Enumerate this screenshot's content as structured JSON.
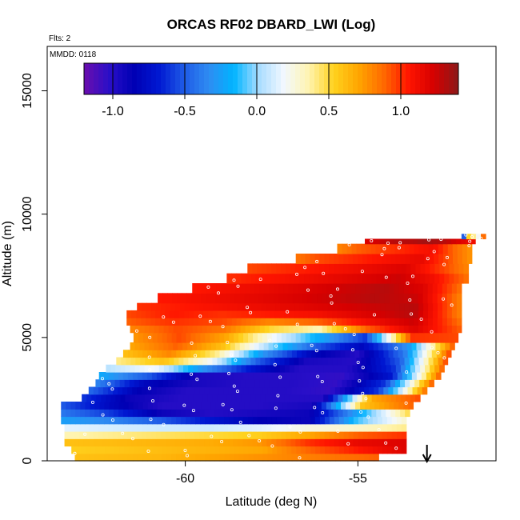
{
  "chart_data": {
    "type": "heatmap",
    "title": "ORCAS RF02 DBARD_LWI (Log)",
    "flights_note": "Flts: 2",
    "date_note": "MMDD: 0118",
    "xlabel": "Latitude (deg N)",
    "ylabel": "Altitude (m)",
    "xlim": [
      -64.0,
      -51.0
    ],
    "ylim": [
      0,
      16800
    ],
    "xticks": [
      -60,
      -55
    ],
    "yticks": [
      0,
      5000,
      10000,
      15000
    ],
    "colorbar": {
      "range": [
        -1.2,
        1.4
      ],
      "ticks": [
        -1.0,
        -0.5,
        0.0,
        0.5,
        1.0
      ],
      "tick_labels": [
        "-1.0",
        "-0.5",
        "0.0",
        "0.5",
        "1.0"
      ],
      "colors": [
        "#6a0dad",
        "#2a0fc8",
        "#0000b4",
        "#0018d2",
        "#1e5ae6",
        "#2f8cf2",
        "#00b4ff",
        "#a8dcff",
        "#f2f8ff",
        "#fff4b0",
        "#ffd21e",
        "#ffa500",
        "#ff6a00",
        "#ff1500",
        "#d60000",
        "#8b1a1a"
      ]
    },
    "flight_direction_marker_x": -53.0,
    "grid": false,
    "layers": [
      {
        "alt": [
          0,
          300
        ],
        "x_start": -63.2,
        "x_end": -54.4,
        "values": [
          0.6,
          0.62,
          0.64,
          0.7,
          0.75,
          0.8,
          0.85,
          0.9
        ]
      },
      {
        "alt": [
          300,
          600
        ],
        "x_start": -63.3,
        "x_end": -53.6,
        "values": [
          0.55,
          0.58,
          0.62,
          0.66,
          0.7,
          0.9,
          1.05,
          1.2
        ]
      },
      {
        "alt": [
          600,
          900
        ],
        "x_start": -63.5,
        "x_end": -53.6,
        "values": [
          0.6,
          0.62,
          0.65,
          0.68,
          0.75,
          1.0,
          1.15,
          1.2
        ]
      },
      {
        "alt": [
          900,
          1200
        ],
        "x_start": -63.5,
        "x_end": -53.6,
        "values": [
          0.35,
          0.4,
          0.45,
          0.5,
          0.55,
          0.7,
          0.9,
          1.0
        ]
      },
      {
        "alt": [
          1200,
          1500
        ],
        "x_start": -63.5,
        "x_end": -53.6,
        "values": [
          0.15,
          0.12,
          0.1,
          0.1,
          0.15,
          0.25,
          0.3,
          0.4
        ]
      },
      {
        "alt": [
          1500,
          1800
        ],
        "x_start": -63.6,
        "x_end": -53.6,
        "values": [
          -0.25,
          -0.35,
          -0.5,
          -0.7,
          -0.85,
          -0.9,
          -0.1,
          0.3
        ]
      },
      {
        "alt": [
          1800,
          2100
        ],
        "x_start": -63.6,
        "x_end": -53.5,
        "values": [
          -0.4,
          -0.6,
          -0.9,
          -1.0,
          -0.95,
          -0.9,
          -0.2,
          0.5
        ]
      },
      {
        "alt": [
          2100,
          2400
        ],
        "x_start": -63.6,
        "x_end": -53.4,
        "values": [
          -0.5,
          -0.8,
          -1.0,
          -1.0,
          -1.0,
          -0.95,
          0.6,
          0.9
        ]
      },
      {
        "alt": [
          2400,
          2700
        ],
        "x_start": -63.0,
        "x_end": -53.2,
        "values": [
          -0.6,
          -0.9,
          -1.0,
          -1.0,
          -1.0,
          -1.0,
          0.7,
          0.95
        ]
      },
      {
        "alt": [
          2700,
          3000
        ],
        "x_start": -62.8,
        "x_end": -53.0,
        "values": [
          -0.45,
          -0.85,
          -1.0,
          -1.0,
          -1.0,
          -1.05,
          -0.6,
          0.9
        ]
      },
      {
        "alt": [
          3000,
          3300
        ],
        "x_start": -62.6,
        "x_end": -52.8,
        "values": [
          -0.35,
          -0.8,
          -0.95,
          -1.0,
          -1.0,
          -1.05,
          -0.6,
          0.95
        ]
      },
      {
        "alt": [
          3300,
          3600
        ],
        "x_start": -62.5,
        "x_end": -52.6,
        "values": [
          -0.2,
          -0.5,
          -0.95,
          -1.0,
          -1.0,
          -1.05,
          -0.7,
          0.95
        ]
      },
      {
        "alt": [
          3600,
          3900
        ],
        "x_start": -62.3,
        "x_end": -52.5,
        "values": [
          0.05,
          0.2,
          -0.3,
          -0.7,
          -1.0,
          -1.0,
          -0.6,
          0.95
        ]
      },
      {
        "alt": [
          3900,
          4200
        ],
        "x_start": -62.0,
        "x_end": -52.4,
        "values": [
          0.4,
          0.6,
          0.2,
          -0.5,
          -0.95,
          -1.0,
          -0.5,
          1.0
        ]
      },
      {
        "alt": [
          4200,
          4500
        ],
        "x_start": -61.8,
        "x_end": -52.3,
        "values": [
          0.6,
          0.8,
          0.4,
          -0.3,
          -0.8,
          -1.0,
          -0.4,
          1.0
        ]
      },
      {
        "alt": [
          4500,
          4800
        ],
        "x_start": -61.6,
        "x_end": -52.2,
        "values": [
          0.7,
          0.9,
          0.6,
          0.0,
          -0.5,
          -0.8,
          -0.3,
          0.95
        ]
      },
      {
        "alt": [
          4800,
          5200
        ],
        "x_start": -61.5,
        "x_end": -52.1,
        "values": [
          0.75,
          0.95,
          0.7,
          0.2,
          -0.2,
          -0.6,
          1.0,
          0.95
        ]
      },
      {
        "alt": [
          5200,
          5500
        ],
        "x_start": -61.6,
        "x_end": -52.0,
        "values": [
          0.8,
          0.95,
          0.85,
          0.5,
          0.35,
          0.9,
          1.2,
          0.9
        ]
      },
      {
        "alt": [
          5500,
          5800
        ],
        "x_start": -61.7,
        "x_end": -52.0,
        "values": [
          0.9,
          1.0,
          0.95,
          0.8,
          0.9,
          1.1,
          1.25,
          0.85
        ]
      },
      {
        "alt": [
          5800,
          6100
        ],
        "x_start": -61.7,
        "x_end": -52.0,
        "values": [
          0.95,
          1.05,
          1.0,
          1.05,
          1.1,
          1.2,
          1.3,
          0.8
        ]
      },
      {
        "alt": [
          6100,
          6400
        ],
        "x_start": -61.4,
        "x_end": -52.0,
        "values": [
          1.0,
          1.05,
          1.1,
          1.15,
          1.2,
          1.25,
          1.3,
          0.8
        ]
      },
      {
        "alt": [
          6400,
          6800
        ],
        "x_start": -60.8,
        "x_end": -52.0,
        "values": [
          1.05,
          1.1,
          1.15,
          1.2,
          1.25,
          1.3,
          1.25,
          0.8
        ]
      },
      {
        "alt": [
          6800,
          7200
        ],
        "x_start": -59.8,
        "x_end": -52.0,
        "values": [
          1.05,
          1.1,
          1.15,
          1.2,
          1.25,
          1.3,
          1.2,
          0.85
        ]
      },
      {
        "alt": [
          7200,
          7600
        ],
        "x_start": -58.8,
        "x_end": -51.8,
        "values": [
          1.0,
          1.05,
          1.1,
          1.15,
          1.2,
          1.25,
          1.1,
          0.85
        ]
      },
      {
        "alt": [
          7600,
          8000
        ],
        "x_start": -58.2,
        "x_end": -51.8,
        "values": [
          0.95,
          1.0,
          1.05,
          1.1,
          1.15,
          1.2,
          1.0,
          0.8
        ]
      },
      {
        "alt": [
          8000,
          8400
        ],
        "x_start": -56.8,
        "x_end": -51.7,
        "values": [
          0.85,
          0.95,
          1.0,
          1.05,
          1.1,
          1.15,
          0.95,
          0.75
        ]
      },
      {
        "alt": [
          8400,
          8800
        ],
        "x_start": -55.6,
        "x_end": -51.7,
        "values": [
          0.8,
          0.9,
          0.95,
          1.0,
          1.05,
          1.1,
          0.9,
          0.75
        ]
      },
      {
        "alt": [
          8800,
          9000
        ],
        "x_start": -54.8,
        "x_end": -51.6,
        "values": [
          1.2,
          1.25,
          1.3,
          1.3,
          1.35,
          1.3,
          1.2,
          1.1
        ]
      },
      {
        "alt": [
          9000,
          9200
        ],
        "x_start": -52.0,
        "x_end": -51.3,
        "values": [
          -1.0,
          0.7,
          0.1,
          1.2
        ]
      }
    ]
  }
}
